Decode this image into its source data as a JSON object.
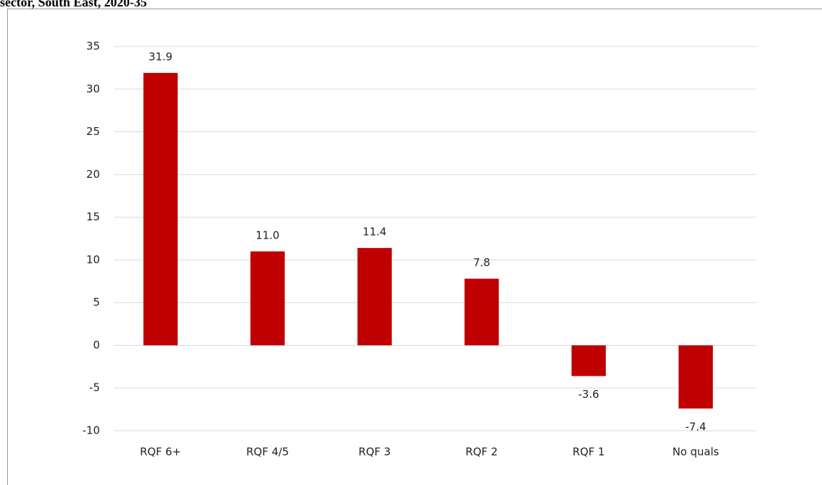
{
  "chart_data": {
    "type": "bar",
    "title": "sector, South East, 2020-35",
    "categories": [
      "RQF 6+",
      "RQF 4/5",
      "RQF 3",
      "RQF 2",
      "RQF 1",
      "No quals"
    ],
    "values": [
      31.9,
      11.0,
      11.4,
      7.8,
      -3.6,
      -7.4
    ],
    "value_labels": [
      "31.9",
      "11.0",
      "11.4",
      "7.8",
      "-3.6",
      "-7.4"
    ],
    "color": "#c00000",
    "ylim": [
      -10,
      35
    ],
    "yticks": [
      -10,
      -5,
      0,
      5,
      10,
      15,
      20,
      25,
      30,
      35
    ],
    "grid": true
  }
}
